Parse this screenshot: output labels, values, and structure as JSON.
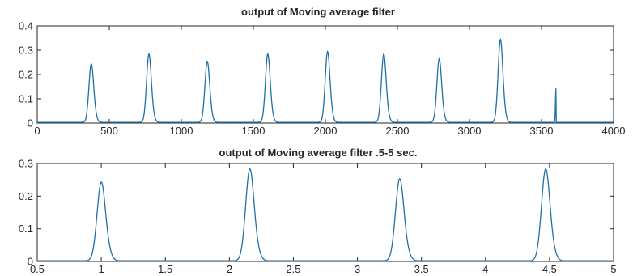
{
  "chart_data": [
    {
      "type": "line",
      "title": "output of Moving average filter",
      "xlabel": "",
      "ylabel": "",
      "xlim": [
        0,
        4000
      ],
      "ylim": [
        0,
        0.4
      ],
      "xticks": [
        0,
        500,
        1000,
        1500,
        2000,
        2500,
        3000,
        3500,
        4000
      ],
      "yticks": [
        0,
        0.1,
        0.2,
        0.3,
        0.4
      ],
      "xtick_labels": [
        "0",
        "500",
        "1000",
        "1500",
        "2000",
        "2500",
        "3000",
        "3500",
        "4000"
      ],
      "ytick_labels": [
        "0",
        "0.1",
        "0.2",
        "0.3",
        "0.4"
      ],
      "grid": false,
      "line_color": "#1f6fa8",
      "baseline": 0.003,
      "peaks": [
        {
          "x": 375,
          "y": 0.24
        },
        {
          "x": 775,
          "y": 0.28
        },
        {
          "x": 1180,
          "y": 0.25
        },
        {
          "x": 1600,
          "y": 0.28
        },
        {
          "x": 2015,
          "y": 0.29
        },
        {
          "x": 2405,
          "y": 0.28
        },
        {
          "x": 2790,
          "y": 0.26
        },
        {
          "x": 3215,
          "y": 0.34
        }
      ],
      "peak_halfwidth": 55,
      "end_spike": {
        "x": 3600,
        "y": 0.14
      }
    },
    {
      "type": "line",
      "title": "output of Moving average filter .5-5 sec.",
      "xlabel": "",
      "ylabel": "",
      "xlim": [
        0.5,
        5
      ],
      "ylim": [
        0,
        0.3
      ],
      "xticks": [
        0.5,
        1,
        1.5,
        2,
        2.5,
        3,
        3.5,
        4,
        4.5,
        5
      ],
      "yticks": [
        0,
        0.1,
        0.2,
        0.3
      ],
      "xtick_labels": [
        "0.5",
        "1",
        "1.5",
        "2",
        "2.5",
        "3",
        "3.5",
        "4",
        "4.5",
        "5"
      ],
      "ytick_labels": [
        "0",
        "0.1",
        "0.2",
        "0.3"
      ],
      "grid": false,
      "line_color": "#1f6fa8",
      "baseline": 0.002,
      "peaks": [
        {
          "x": 1.0,
          "y": 0.24
        },
        {
          "x": 2.16,
          "y": 0.28
        },
        {
          "x": 3.33,
          "y": 0.25
        },
        {
          "x": 4.47,
          "y": 0.28
        }
      ],
      "peak_halfwidth": 0.11
    }
  ]
}
